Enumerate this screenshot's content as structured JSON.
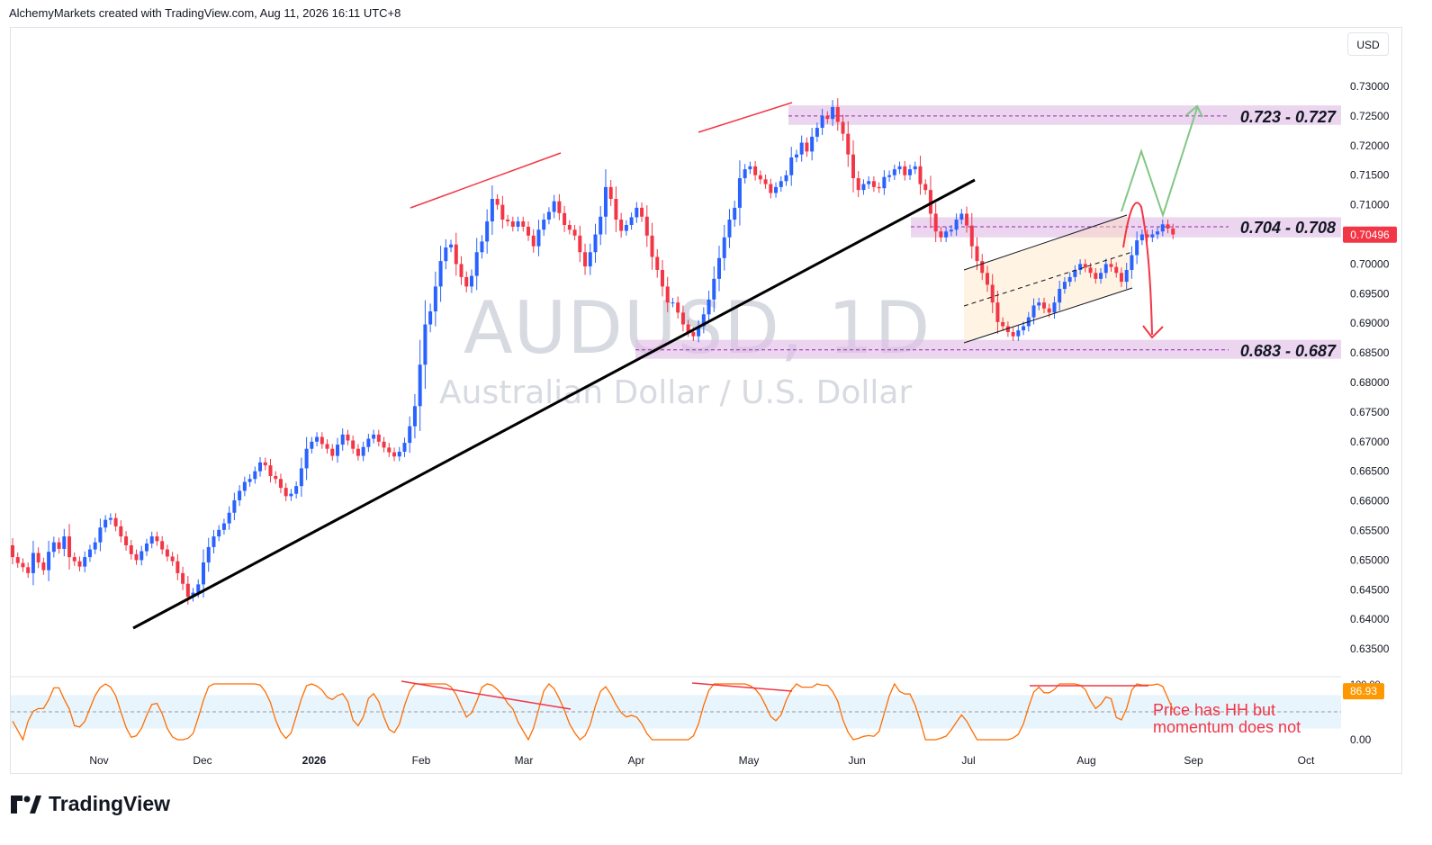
{
  "header": {
    "text": "AlchemyMarkets created with TradingView.com, Aug 11, 2026 16:11 UTC+8"
  },
  "currency_button": "USD",
  "watermark": {
    "symbol": "AUDUSD, 1D",
    "description": "Australian Dollar / U.S. Dollar"
  },
  "brand": {
    "name": "TradingView"
  },
  "colors": {
    "up": "#2962ff",
    "down": "#f23645",
    "zone": "#e1bee7",
    "trendline": "#000000",
    "osc": "#ff6d00",
    "projection_up": "#81c784",
    "projection_down": "#f23645"
  },
  "chart_data": [
    {
      "type": "candlestick",
      "symbol": "AUDUSD",
      "timeframe": "1D",
      "ylim": [
        0.632,
        0.733
      ],
      "y_ticks": [
        "0.73000",
        "0.72500",
        "0.72000",
        "0.71500",
        "0.71000",
        "0.70500",
        "0.70000",
        "0.69500",
        "0.69000",
        "0.68500",
        "0.68000",
        "0.67500",
        "0.67000",
        "0.66500",
        "0.66000",
        "0.65500",
        "0.65000",
        "0.64500",
        "0.64000",
        "0.63500"
      ],
      "x_labels": [
        "Nov",
        "Dec",
        "2026",
        "Feb",
        "Mar",
        "Apr",
        "May",
        "Jun",
        "Jul",
        "Aug",
        "Sep",
        "Oct"
      ],
      "last_price": "0.70496",
      "zones": [
        {
          "label": "0.723 - 0.727",
          "low": 0.7235,
          "high": 0.7268,
          "mid": 0.725
        },
        {
          "label": "0.704 - 0.708",
          "low": 0.7045,
          "high": 0.7079,
          "mid": 0.7063
        },
        {
          "label": "0.683 - 0.687",
          "low": 0.684,
          "high": 0.6872,
          "mid": 0.6855
        }
      ],
      "trendline": {
        "from": {
          "date": "Nov 20",
          "price": 0.6385
        },
        "to": {
          "date": "Jun 29",
          "price": 0.7142
        }
      },
      "channel": {
        "upper": [
          [
            0.6993
          ],
          [
            0.7073
          ]
        ],
        "lower": [
          [
            0.6865
          ],
          [
            0.6956
          ]
        ]
      },
      "closes": [
        0.6505,
        0.6495,
        0.6488,
        0.6478,
        0.6512,
        0.6496,
        0.6483,
        0.6514,
        0.653,
        0.6519,
        0.654,
        0.6505,
        0.6498,
        0.6489,
        0.6505,
        0.6518,
        0.653,
        0.6555,
        0.6568,
        0.6571,
        0.6557,
        0.654,
        0.6525,
        0.651,
        0.65,
        0.6515,
        0.6528,
        0.654,
        0.6532,
        0.6518,
        0.6506,
        0.6498,
        0.6478,
        0.646,
        0.6438,
        0.6445,
        0.6459,
        0.6496,
        0.6522,
        0.654,
        0.6551,
        0.6562,
        0.658,
        0.6601,
        0.6617,
        0.6632,
        0.6637,
        0.665,
        0.6665,
        0.666,
        0.6642,
        0.6637,
        0.6622,
        0.6608,
        0.6612,
        0.6625,
        0.6655,
        0.6688,
        0.67,
        0.6708,
        0.6696,
        0.6688,
        0.6676,
        0.6695,
        0.6712,
        0.6702,
        0.6688,
        0.6676,
        0.6691,
        0.6705,
        0.6712,
        0.67,
        0.669,
        0.6682,
        0.6675,
        0.6683,
        0.6698,
        0.6726,
        0.676,
        0.683,
        0.6898,
        0.692,
        0.6962,
        0.7005,
        0.7028,
        0.7033,
        0.7,
        0.6978,
        0.6962,
        0.698,
        0.702,
        0.7038,
        0.7072,
        0.711,
        0.71,
        0.7075,
        0.7072,
        0.7063,
        0.7072,
        0.7063,
        0.7048,
        0.703,
        0.7058,
        0.7075,
        0.7088,
        0.7106,
        0.7086,
        0.7066,
        0.7058,
        0.7048,
        0.702,
        0.6996,
        0.702,
        0.705,
        0.708,
        0.713,
        0.711,
        0.7075,
        0.7056,
        0.7066,
        0.7079,
        0.7095,
        0.708,
        0.7048,
        0.7012,
        0.699,
        0.6962,
        0.6935,
        0.6935,
        0.6918,
        0.6898,
        0.6885,
        0.6878,
        0.6895,
        0.6915,
        0.694,
        0.6975,
        0.701,
        0.7045,
        0.7075,
        0.7095,
        0.7145,
        0.716,
        0.7165,
        0.715,
        0.7143,
        0.7135,
        0.712,
        0.713,
        0.714,
        0.715,
        0.718,
        0.7185,
        0.7205,
        0.719,
        0.7215,
        0.723,
        0.725,
        0.7245,
        0.7265,
        0.724,
        0.722,
        0.7185,
        0.7145,
        0.7125,
        0.7135,
        0.714,
        0.713,
        0.7128,
        0.7147,
        0.715,
        0.716,
        0.7165,
        0.715,
        0.716,
        0.7165,
        0.7135,
        0.7125,
        0.7085,
        0.7055,
        0.7045,
        0.7055,
        0.7058,
        0.7075,
        0.7085,
        0.7065,
        0.703,
        0.7005,
        0.6985,
        0.6965,
        0.6935,
        0.6902,
        0.6895,
        0.6885,
        0.6878,
        0.6888,
        0.6895,
        0.691,
        0.693,
        0.6935,
        0.6925,
        0.6918,
        0.6935,
        0.6958,
        0.697,
        0.6978,
        0.699,
        0.7,
        0.6994,
        0.6985,
        0.6975,
        0.6985,
        0.7,
        0.6995,
        0.6985,
        0.697,
        0.699,
        0.7015,
        0.704,
        0.705,
        0.7045,
        0.705,
        0.7055,
        0.7067,
        0.706,
        0.705
      ],
      "oscillator": {
        "last_value": "86.93",
        "ticks": [
          "100.00",
          "0.00"
        ],
        "overbought": 80,
        "oversold": 20
      },
      "annotations": [
        {
          "text": "Price has HH but momentum does not"
        }
      ]
    }
  ]
}
